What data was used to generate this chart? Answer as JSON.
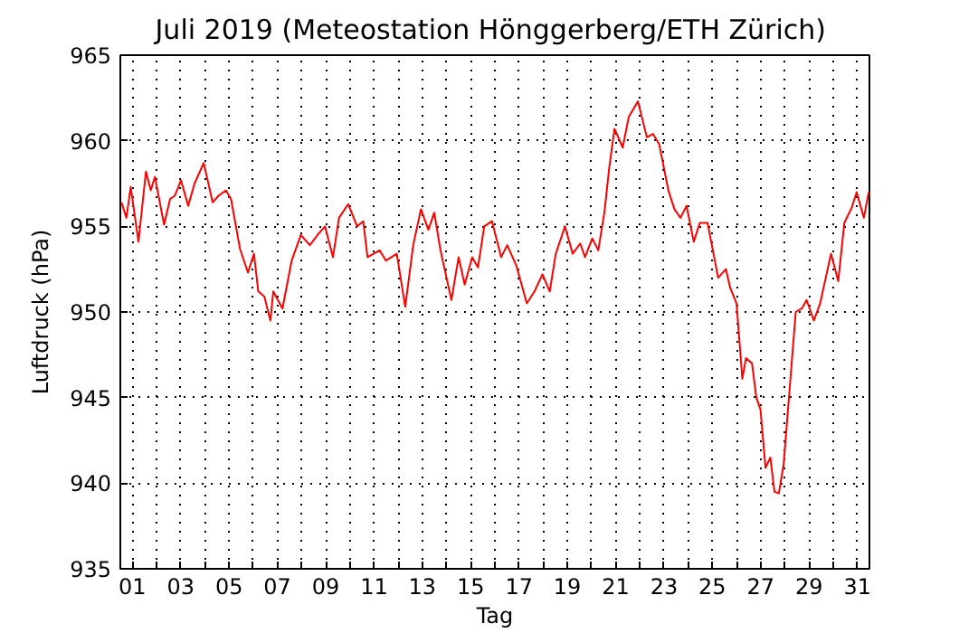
{
  "chart_data": {
    "type": "line",
    "title": "Juli 2019  (Meteostation Hönggerberg/ETH Zürich)",
    "xlabel": "Tag",
    "ylabel": "Luftdruck (hPa)",
    "xlim": [
      0.5,
      31.5
    ],
    "ylim": [
      935,
      965
    ],
    "xticks": [
      {
        "value": 1,
        "label": "01"
      },
      {
        "value": 2,
        "label": null
      },
      {
        "value": 3,
        "label": "03"
      },
      {
        "value": 4,
        "label": null
      },
      {
        "value": 5,
        "label": "05"
      },
      {
        "value": 6,
        "label": null
      },
      {
        "value": 7,
        "label": "07"
      },
      {
        "value": 8,
        "label": null
      },
      {
        "value": 9,
        "label": "09"
      },
      {
        "value": 10,
        "label": null
      },
      {
        "value": 11,
        "label": "11"
      },
      {
        "value": 12,
        "label": null
      },
      {
        "value": 13,
        "label": "13"
      },
      {
        "value": 14,
        "label": null
      },
      {
        "value": 15,
        "label": "15"
      },
      {
        "value": 16,
        "label": null
      },
      {
        "value": 17,
        "label": "17"
      },
      {
        "value": 18,
        "label": null
      },
      {
        "value": 19,
        "label": "19"
      },
      {
        "value": 20,
        "label": null
      },
      {
        "value": 21,
        "label": "21"
      },
      {
        "value": 22,
        "label": null
      },
      {
        "value": 23,
        "label": "23"
      },
      {
        "value": 24,
        "label": null
      },
      {
        "value": 25,
        "label": "25"
      },
      {
        "value": 26,
        "label": null
      },
      {
        "value": 27,
        "label": "27"
      },
      {
        "value": 28,
        "label": null
      },
      {
        "value": 29,
        "label": "29"
      },
      {
        "value": 30,
        "label": null
      },
      {
        "value": 31,
        "label": "31"
      }
    ],
    "yticks": [
      935,
      940,
      945,
      950,
      955,
      960,
      965
    ],
    "grid": true,
    "marker": "none",
    "line_style": "solid",
    "series": [
      {
        "color": "#ff0000",
        "x": [
          0.55,
          0.75,
          0.93,
          1.25,
          1.56,
          1.76,
          1.93,
          2.31,
          2.56,
          2.76,
          3.01,
          3.31,
          3.57,
          3.95,
          4.32,
          4.57,
          4.87,
          5.08,
          5.45,
          5.78,
          6.03,
          6.21,
          6.46,
          6.71,
          6.83,
          7.21,
          7.59,
          7.97,
          8.34,
          8.72,
          8.97,
          9.3,
          9.55,
          9.93,
          10.3,
          10.55,
          10.73,
          11.23,
          11.49,
          11.94,
          12.29,
          12.62,
          12.94,
          13.25,
          13.49,
          13.75,
          14.2,
          14.5,
          14.75,
          15.06,
          15.3,
          15.56,
          15.88,
          16.26,
          16.51,
          16.89,
          17.32,
          17.64,
          17.97,
          18.27,
          18.52,
          18.9,
          19.22,
          19.53,
          19.73,
          20.03,
          20.28,
          20.54,
          20.73,
          20.95,
          21.29,
          21.54,
          21.92,
          22.29,
          22.54,
          22.8,
          23.18,
          23.43,
          23.68,
          23.93,
          24.23,
          24.48,
          24.8,
          25.24,
          25.56,
          25.74,
          26.0,
          26.24,
          26.39,
          26.64,
          26.82,
          26.99,
          27.2,
          27.4,
          27.57,
          27.75,
          27.95,
          28.45,
          28.7,
          28.9,
          29.2,
          29.46,
          29.91,
          30.21,
          30.46,
          30.77,
          30.97,
          31.27,
          31.47
        ],
        "values": [
          956.4,
          955.5,
          957.3,
          954.1,
          958.2,
          957.1,
          957.9,
          955.1,
          956.6,
          956.8,
          957.7,
          956.2,
          957.5,
          958.7,
          956.4,
          956.8,
          957.1,
          956.6,
          953.7,
          952.3,
          953.4,
          951.2,
          950.9,
          949.5,
          951.2,
          950.2,
          953.0,
          954.5,
          953.9,
          954.6,
          955.0,
          953.2,
          955.5,
          956.3,
          955.0,
          955.3,
          953.2,
          953.6,
          953.0,
          953.4,
          950.3,
          953.9,
          956.0,
          954.8,
          955.8,
          953.6,
          950.7,
          953.2,
          951.6,
          953.2,
          952.6,
          955.0,
          955.3,
          953.2,
          953.9,
          952.7,
          950.5,
          951.2,
          952.2,
          951.2,
          953.4,
          955.0,
          953.4,
          954.0,
          953.2,
          954.3,
          953.6,
          955.9,
          958.4,
          960.7,
          959.6,
          961.4,
          962.3,
          960.2,
          960.4,
          959.8,
          957.1,
          956.0,
          955.5,
          956.2,
          954.1,
          955.2,
          955.2,
          952.0,
          952.5,
          951.4,
          950.5,
          946.1,
          947.3,
          947.0,
          945.0,
          944.3,
          940.9,
          941.5,
          939.5,
          939.4,
          941.1,
          950.0,
          950.2,
          950.7,
          949.5,
          950.5,
          953.4,
          951.8,
          955.2,
          956.1,
          957.0,
          955.5,
          957.0
        ]
      }
    ]
  }
}
